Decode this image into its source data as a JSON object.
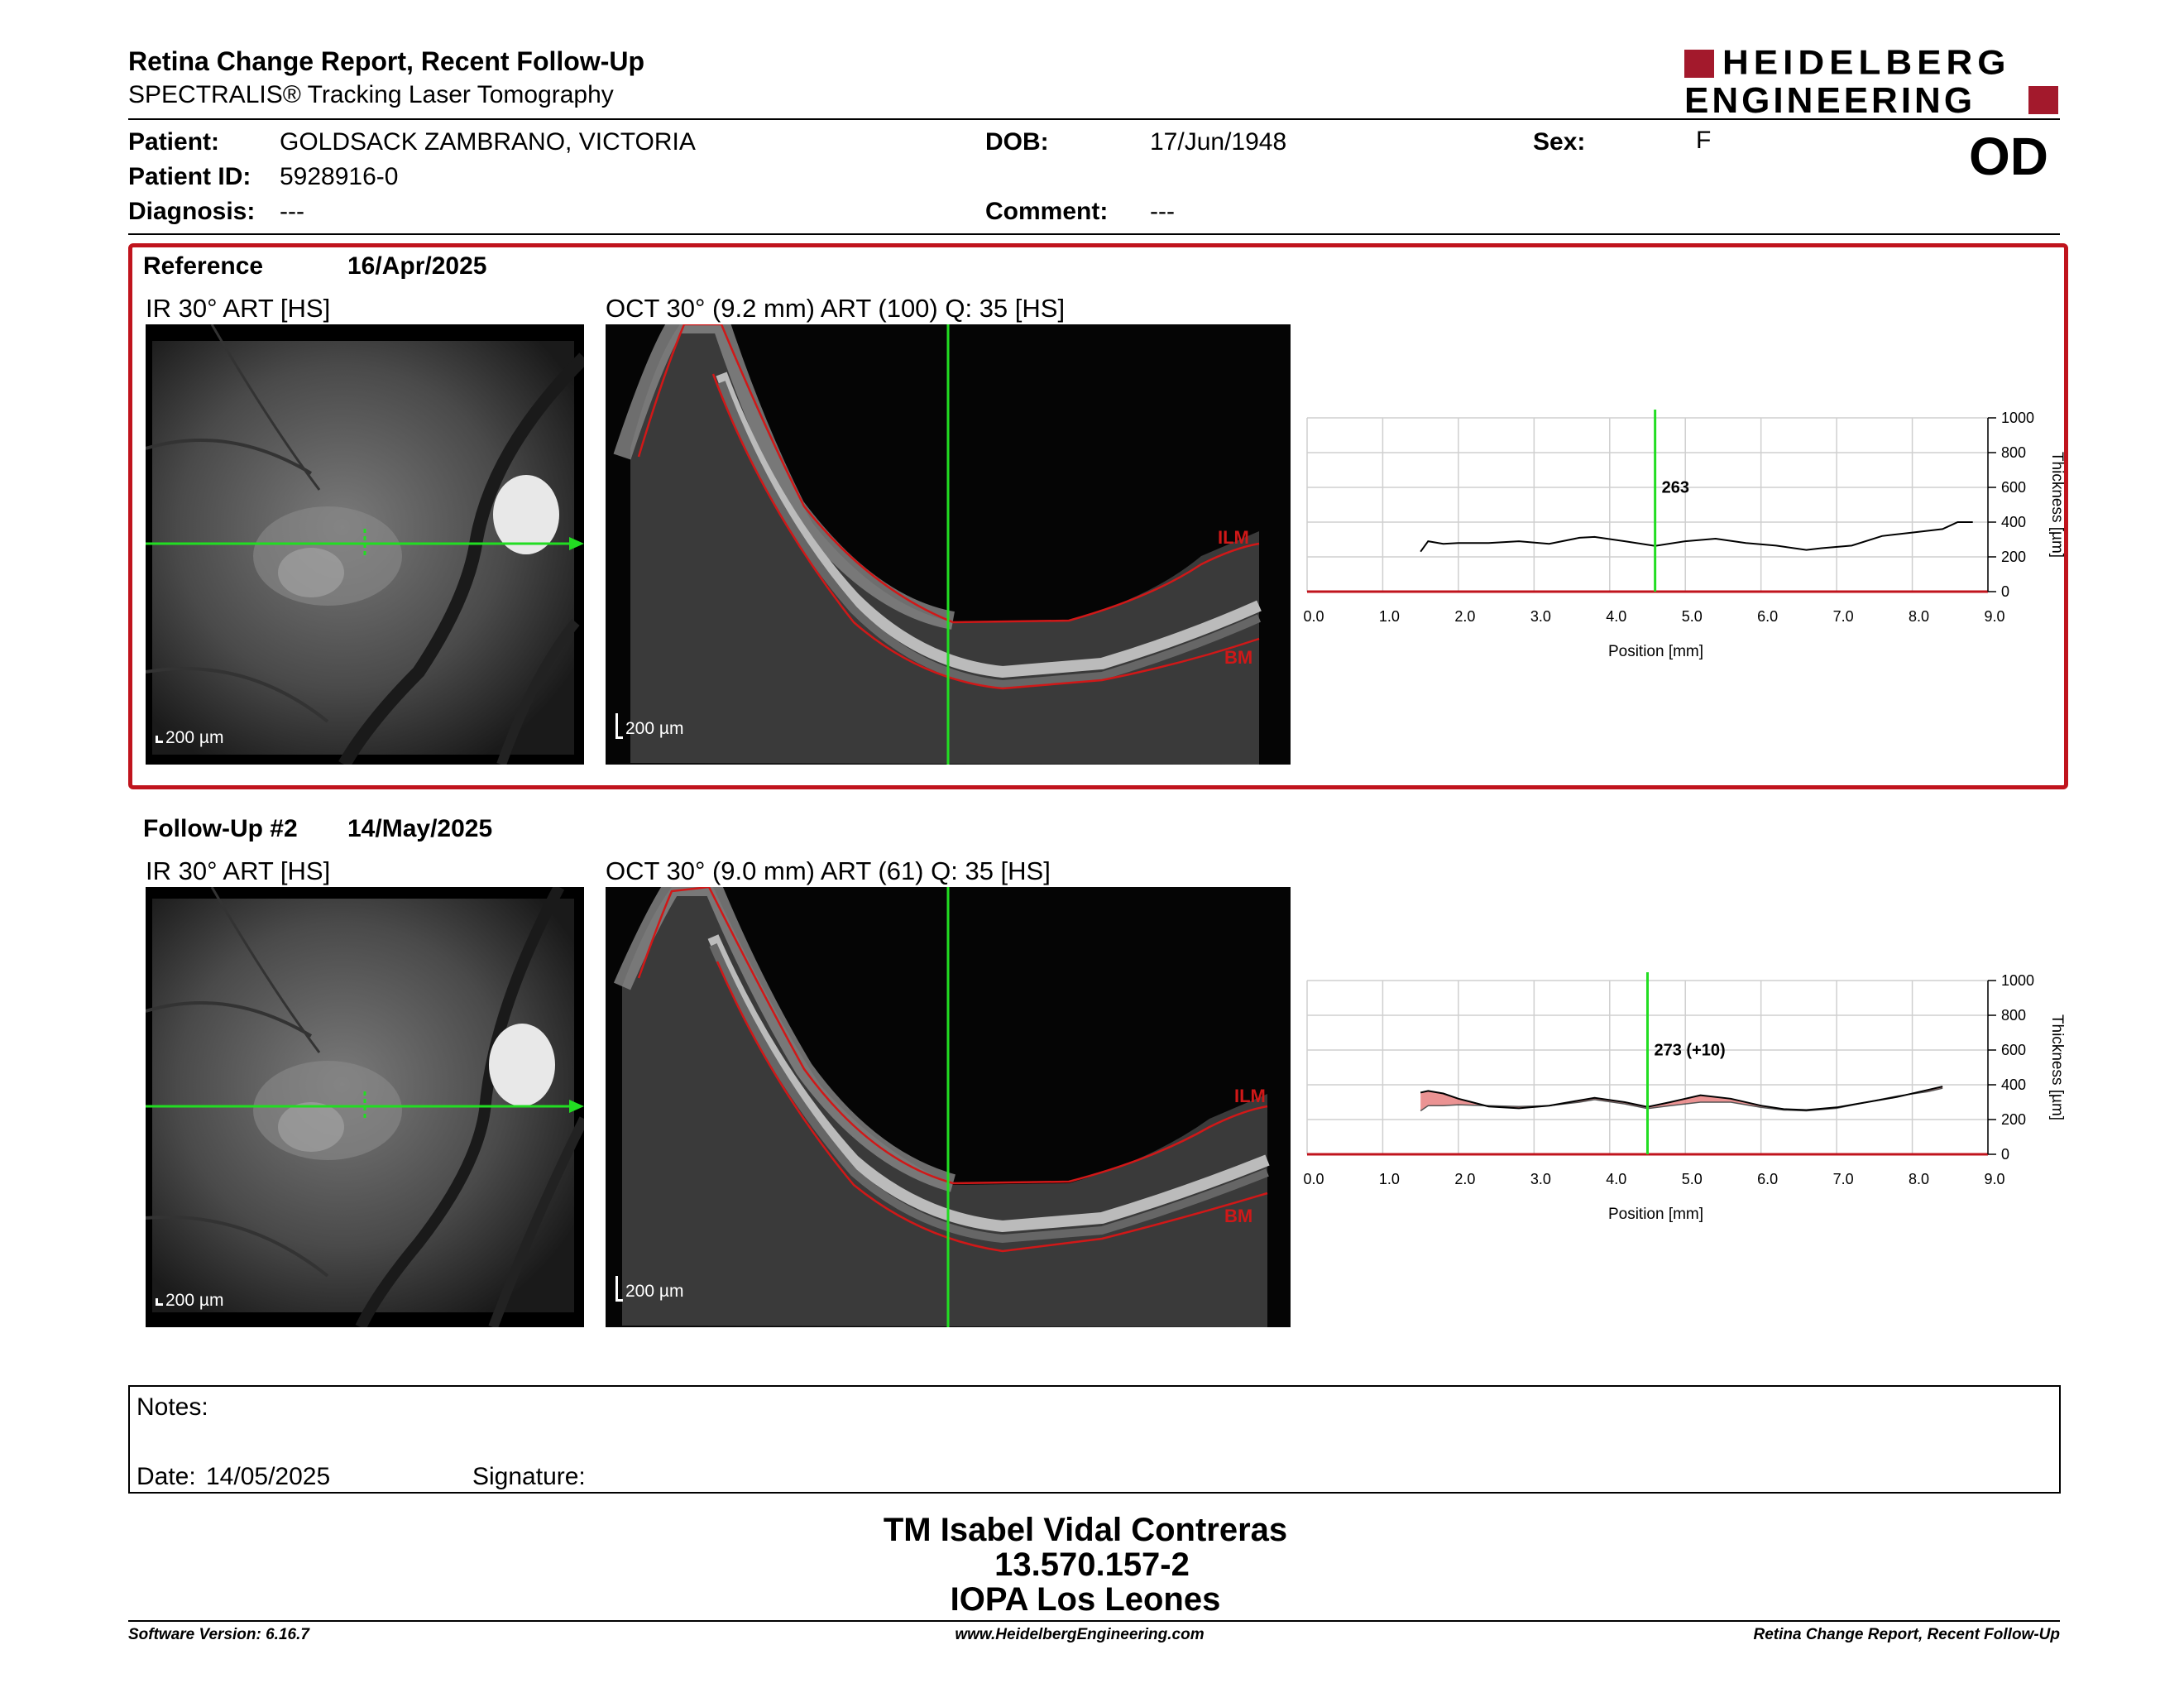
{
  "header": {
    "title": "Retina Change Report, Recent Follow-Up",
    "subtitle": "SPECTRALIS® Tracking Laser Tomography",
    "logo_line1": "HEIDELBERG",
    "logo_line2": "ENGINEERING",
    "eye": "OD"
  },
  "patient": {
    "name_label": "Patient:",
    "name": "GOLDSACK ZAMBRANO, VICTORIA",
    "id_label": "Patient ID:",
    "id": "5928916-0",
    "diagnosis_label": "Diagnosis:",
    "diagnosis": "---",
    "dob_label": "DOB:",
    "dob": "17/Jun/1948",
    "comment_label": "Comment:",
    "comment": "---",
    "sex_label": "Sex:",
    "sex": "F"
  },
  "reference": {
    "label": "Reference",
    "date": "16/Apr/2025",
    "ir_title": "IR 30° ART [HS]",
    "oct_title": "OCT 30° (9.2 mm) ART (100) Q: 35 [HS]",
    "scale": "200 µm",
    "ilm": "ILM",
    "bm": "BM",
    "chart": {
      "type": "line",
      "xlabel": "Position [mm]",
      "ylabel": "Thickness [µm]",
      "x_ticks": [
        "0.0",
        "1.0",
        "2.0",
        "3.0",
        "4.0",
        "5.0",
        "6.0",
        "7.0",
        "8.0",
        "9.0"
      ],
      "y_ticks": [
        "0",
        "200",
        "400",
        "600",
        "800",
        "1000"
      ],
      "xlim": [
        0,
        9
      ],
      "ylim": [
        0,
        1000
      ],
      "cursor_x": 4.6,
      "cursor_label": "263",
      "series": [
        {
          "x": [
            1.5,
            1.6,
            1.8,
            2.0,
            2.4,
            2.8,
            3.2,
            3.6,
            3.8,
            4.2,
            4.6,
            5.0,
            5.4,
            5.8,
            6.2,
            6.6,
            6.8,
            7.2,
            7.6,
            8.0,
            8.4,
            8.6,
            8.8
          ],
          "y": [
            230,
            290,
            275,
            280,
            280,
            290,
            275,
            310,
            315,
            290,
            263,
            290,
            305,
            280,
            265,
            240,
            250,
            265,
            320,
            340,
            360,
            400,
            400
          ]
        }
      ]
    }
  },
  "followup": {
    "label": "Follow-Up #2",
    "date": "14/May/2025",
    "ir_title": "IR 30° ART [HS]",
    "oct_title": "OCT 30° (9.0 mm) ART (61) Q: 35 [HS]",
    "scale": "200 µm",
    "ilm": "ILM",
    "bm": "BM",
    "chart": {
      "type": "area",
      "xlabel": "Position [mm]",
      "ylabel": "Thickness [µm]",
      "x_ticks": [
        "0.0",
        "1.0",
        "2.0",
        "3.0",
        "4.0",
        "5.0",
        "6.0",
        "7.0",
        "8.0",
        "9.0"
      ],
      "y_ticks": [
        "0",
        "200",
        "400",
        "600",
        "800",
        "1000"
      ],
      "xlim": [
        0,
        9
      ],
      "ylim": [
        0,
        1000
      ],
      "cursor_x": 4.5,
      "cursor_label": "273 (+10)",
      "series": [
        {
          "x": [
            1.5,
            1.6,
            1.8,
            2.0,
            2.4,
            2.8,
            3.2,
            3.6,
            3.8,
            4.2,
            4.5,
            4.8,
            5.2,
            5.6,
            6.0,
            6.3,
            6.6,
            7.0,
            7.4,
            7.8,
            8.2,
            8.4
          ],
          "y": [
            355,
            365,
            350,
            320,
            275,
            265,
            280,
            310,
            325,
            300,
            273,
            300,
            340,
            320,
            280,
            260,
            255,
            270,
            300,
            330,
            370,
            390
          ]
        },
        {
          "x": [
            1.5,
            1.6,
            1.8,
            2.0,
            2.4,
            2.8,
            3.2,
            3.6,
            3.8,
            4.2,
            4.5,
            4.8,
            5.2,
            5.6,
            6.0,
            6.3,
            6.6,
            7.0,
            7.4,
            7.8,
            8.2,
            8.4
          ],
          "y": [
            250,
            280,
            280,
            285,
            280,
            275,
            280,
            300,
            315,
            290,
            263,
            280,
            300,
            300,
            270,
            255,
            250,
            265,
            300,
            335,
            360,
            380
          ]
        }
      ]
    }
  },
  "notes": {
    "label": "Notes:",
    "date_label": "Date:",
    "date": "14/05/2025",
    "signature_label": "Signature:"
  },
  "signature_block": {
    "line1": "TM Isabel Vidal Contreras",
    "line2": "13.570.157-2",
    "line3": "IOPA Los Leones"
  },
  "footer": {
    "left": "Software Version: 6.16.7",
    "center": "www.HeidelbergEngineering.com",
    "right": "Retina Change Report, Recent Follow-Up"
  },
  "colors": {
    "brand_red": "#a3192c",
    "frame_red": "#c0141d",
    "cursor_green": "#22dd22",
    "layer_red": "#d01818",
    "change_fill": "#e88080"
  }
}
